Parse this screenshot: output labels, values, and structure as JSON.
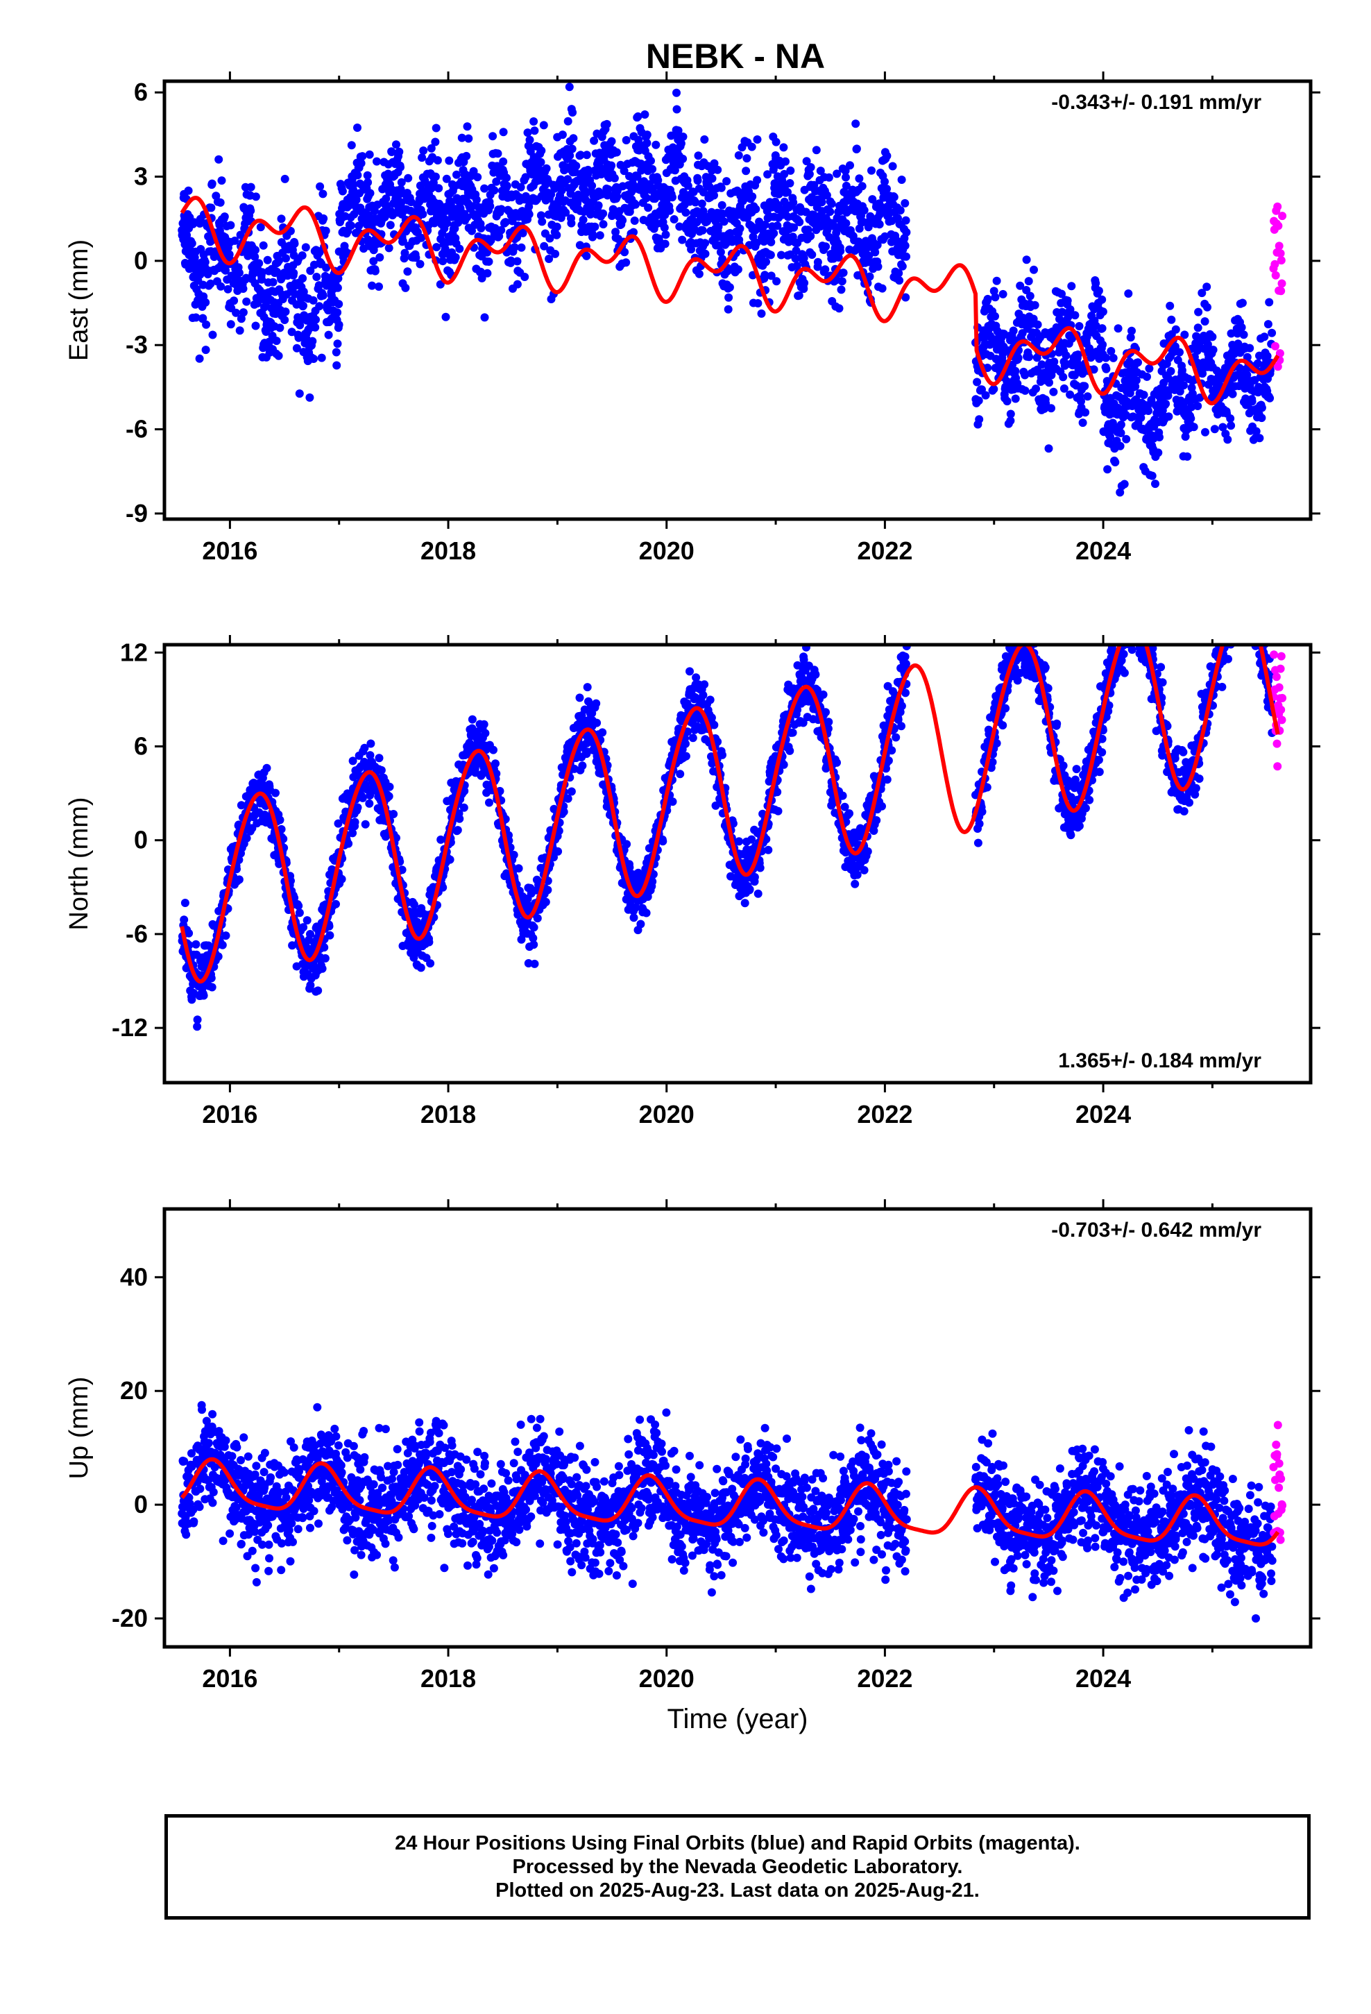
{
  "title": "NEBK - NA",
  "colors": {
    "final": "#0000ff",
    "rapid": "#ff00ff",
    "model": "#ff0000",
    "axis": "#000000"
  },
  "x_axis_label": "Time (year)",
  "caption": [
    "24 Hour Positions Using Final Orbits (blue) and Rapid Orbits (magenta).",
    "Processed by the Nevada Geodetic Laboratory.",
    "Plotted on 2025-Aug-23. Last data on 2025-Aug-21."
  ],
  "chart_data": [
    {
      "type": "scatter",
      "component": "east",
      "ylabel": "East (mm)",
      "rate_label": "-0.343+/- 0.191 mm/yr",
      "rate_position": "top-right",
      "xlim": [
        2015.4,
        2025.9
      ],
      "ylim": [
        -9.2,
        6.4
      ],
      "xticks": [
        2016,
        2018,
        2020,
        2022,
        2024
      ],
      "xtick_labels": [
        "2016",
        "2018",
        "2020",
        "2022",
        "2024"
      ],
      "yticks": [
        -9,
        -6,
        -3,
        0,
        3,
        6
      ],
      "ytick_labels": [
        "-9",
        "-6",
        "-3",
        "0",
        "3",
        "6"
      ],
      "gaps": [
        [
          2022.2,
          2022.83
        ]
      ],
      "segments": [
        {
          "start": 2015.56,
          "end": 2016.2,
          "mean": 0.2,
          "spread": 1.3
        },
        {
          "start": 2016.2,
          "end": 2017.0,
          "mean": -1.2,
          "spread": 1.5
        },
        {
          "start": 2017.0,
          "end": 2018.7,
          "mean": 1.8,
          "spread": 1.3
        },
        {
          "start": 2018.7,
          "end": 2020.3,
          "mean": 2.6,
          "spread": 1.3
        },
        {
          "start": 2020.3,
          "end": 2022.2,
          "mean": 1.3,
          "spread": 1.4
        },
        {
          "start": 2022.83,
          "end": 2024.0,
          "mean": -3.2,
          "spread": 1.2
        },
        {
          "start": 2024.0,
          "end": 2024.6,
          "mean": -5.2,
          "spread": 1.4
        },
        {
          "start": 2024.6,
          "end": 2025.55,
          "mean": -4.2,
          "spread": 1.2
        }
      ],
      "model": {
        "offset": 1.3,
        "slope": -0.343,
        "t0": 2015.56,
        "annual_amp": 0.7,
        "annual_phase": 0.3,
        "semi_amp": 0.6,
        "semi_phase": 1.1,
        "steps": [
          {
            "t": 2022.83,
            "size": -1.9
          }
        ]
      },
      "rapid": {
        "start": 2025.56,
        "end": 2025.64,
        "min": -4.2,
        "max": 2.1
      }
    },
    {
      "type": "scatter",
      "component": "north",
      "ylabel": "North (mm)",
      "rate_label": "1.365+/- 0.184 mm/yr",
      "rate_position": "bottom-right",
      "xlim": [
        2015.4,
        2025.9
      ],
      "ylim": [
        -15.5,
        12.5
      ],
      "xticks": [
        2016,
        2018,
        2020,
        2022,
        2024
      ],
      "xtick_labels": [
        "2016",
        "2018",
        "2020",
        "2022",
        "2024"
      ],
      "yticks": [
        -12,
        -6,
        0,
        6,
        12
      ],
      "ytick_labels": [
        "-12",
        "-6",
        "0",
        "6",
        "12"
      ],
      "gaps": [
        [
          2022.2,
          2022.83
        ]
      ],
      "segments": [
        {
          "start": 2015.56,
          "end": 2022.2,
          "mean": 0,
          "spread": 1.0
        },
        {
          "start": 2022.83,
          "end": 2025.55,
          "mean": 0,
          "spread": 1.0
        }
      ],
      "model": {
        "offset": -3.4,
        "slope": 1.365,
        "t0": 2015.56,
        "annual_amp": 5.6,
        "annual_phase": 0.0,
        "semi_amp": 0.4,
        "semi_phase": 0.3,
        "steps": []
      },
      "rapid": {
        "start": 2025.56,
        "end": 2025.64,
        "min": 4.5,
        "max": 12.0
      }
    },
    {
      "type": "scatter",
      "component": "up",
      "ylabel": "Up (mm)",
      "rate_label": "-0.703+/- 0.642 mm/yr",
      "rate_position": "top-right",
      "xlim": [
        2015.4,
        2025.9
      ],
      "ylim": [
        -25,
        52
      ],
      "xticks": [
        2016,
        2018,
        2020,
        2022,
        2024
      ],
      "xtick_labels": [
        "2016",
        "2018",
        "2020",
        "2022",
        "2024"
      ],
      "yticks": [
        -20,
        0,
        20,
        40
      ],
      "ytick_labels": [
        "-20",
        "0",
        "20",
        "40"
      ],
      "gaps": [
        [
          2022.2,
          2022.83
        ]
      ],
      "segments": [
        {
          "start": 2015.56,
          "end": 2022.2,
          "mean": 0,
          "spread": 4.5
        },
        {
          "start": 2022.83,
          "end": 2025.55,
          "mean": 0,
          "spread": 4.5
        }
      ],
      "model": {
        "offset": 3.2,
        "slope": -0.703,
        "t0": 2015.56,
        "annual_amp": 4.0,
        "annual_phase": 0.6,
        "semi_amp": 1.0,
        "semi_phase": 0.2,
        "steps": []
      },
      "rapid": {
        "start": 2025.56,
        "end": 2025.64,
        "min": -6.5,
        "max": 14.5
      }
    }
  ]
}
